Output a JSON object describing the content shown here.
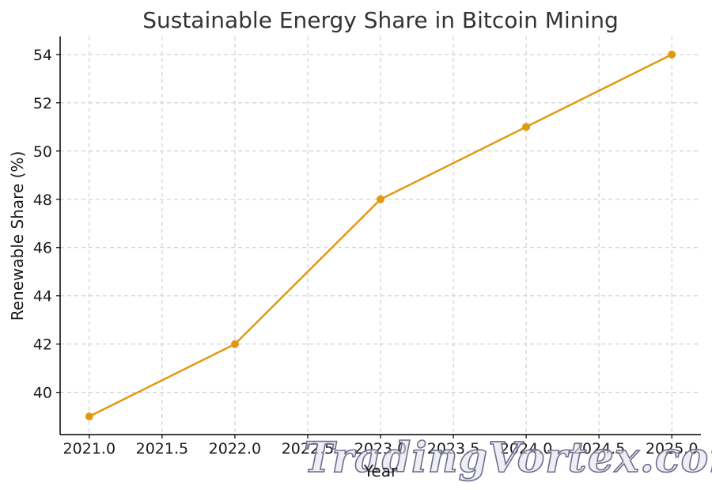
{
  "chart_data": {
    "type": "line",
    "title": "Sustainable Energy Share in Bitcoin Mining",
    "xlabel": "Year",
    "ylabel": "Renewable Share (%)",
    "x": [
      2021,
      2022,
      2023,
      2024,
      2025
    ],
    "series": [
      {
        "values": [
          39,
          42,
          48,
          51,
          54
        ],
        "color": "#e09a12",
        "marker": "circle"
      }
    ],
    "xlim": [
      2020.8,
      2025.2
    ],
    "ylim": [
      38.25,
      54.75
    ],
    "xticks": [
      2021.0,
      2021.5,
      2022.0,
      2022.5,
      2023.0,
      2023.5,
      2024.0,
      2024.5,
      2025.0
    ],
    "xtick_labels": [
      "2021.0",
      "2021.5",
      "2022.0",
      "2022.5",
      "2023.0",
      "2023.5",
      "2024.0",
      "2024.5",
      "2025.0"
    ],
    "yticks": [
      40,
      42,
      44,
      46,
      48,
      50,
      52,
      54
    ],
    "ytick_labels": [
      "40",
      "42",
      "44",
      "46",
      "48",
      "50",
      "52",
      "54"
    ],
    "grid": true,
    "legend": "none"
  },
  "watermark": {
    "text": "TradingVortex.com"
  }
}
